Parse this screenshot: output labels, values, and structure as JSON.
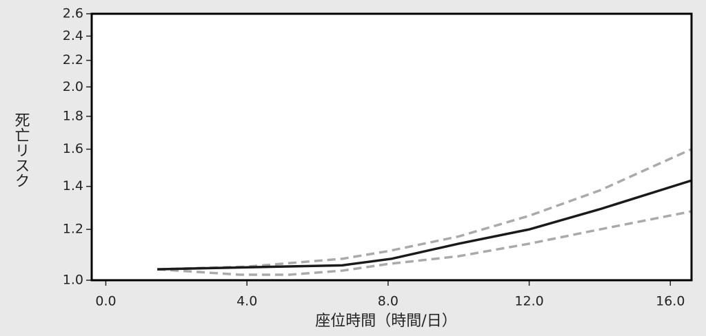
{
  "chart_data": {
    "type": "line",
    "xlabel": "座位時間（時間/日）",
    "ylabel": "死亡リスク",
    "xlim": [
      -0.4,
      16.6
    ],
    "xticks": [
      {
        "value": 0,
        "label": "0.0"
      },
      {
        "value": 4,
        "label": "4.0"
      },
      {
        "value": 8,
        "label": "8.0"
      },
      {
        "value": 12,
        "label": "12.0"
      },
      {
        "value": 16,
        "label": "16.0"
      }
    ],
    "ylim": [
      1.0,
      2.6
    ],
    "yscale": "log",
    "yticks": [
      {
        "value": 1.0,
        "label": "1.0"
      },
      {
        "value": 1.2,
        "label": "1.2"
      },
      {
        "value": 1.4,
        "label": "1.4"
      },
      {
        "value": 1.6,
        "label": "1.6"
      },
      {
        "value": 1.8,
        "label": "1.8"
      },
      {
        "value": 2.0,
        "label": "2.0"
      },
      {
        "value": 2.2,
        "label": "2.2"
      },
      {
        "value": 2.4,
        "label": "2.4"
      },
      {
        "value": 2.6,
        "label": "2.6"
      }
    ],
    "series": [
      {
        "color": "#aaaaaa",
        "style": "dashed",
        "x": [
          1.46,
          4,
          6.7,
          8,
          10,
          12,
          14,
          16.6
        ],
        "values": [
          1.04,
          1.05,
          1.08,
          1.11,
          1.17,
          1.26,
          1.38,
          1.6
        ]
      },
      {
        "color": "#aaaaaa",
        "style": "dashed",
        "x": [
          1.46,
          3.8,
          5.2,
          6.7,
          8,
          10,
          12,
          14,
          16.6
        ],
        "values": [
          1.04,
          1.02,
          1.02,
          1.035,
          1.06,
          1.09,
          1.14,
          1.2,
          1.28
        ]
      },
      {
        "color": "#1a1a1a",
        "style": "solid",
        "x": [
          1.46,
          6.7,
          8.1,
          10,
          12,
          14,
          16.6
        ],
        "values": [
          1.04,
          1.055,
          1.08,
          1.14,
          1.2,
          1.29,
          1.43
        ]
      }
    ]
  }
}
